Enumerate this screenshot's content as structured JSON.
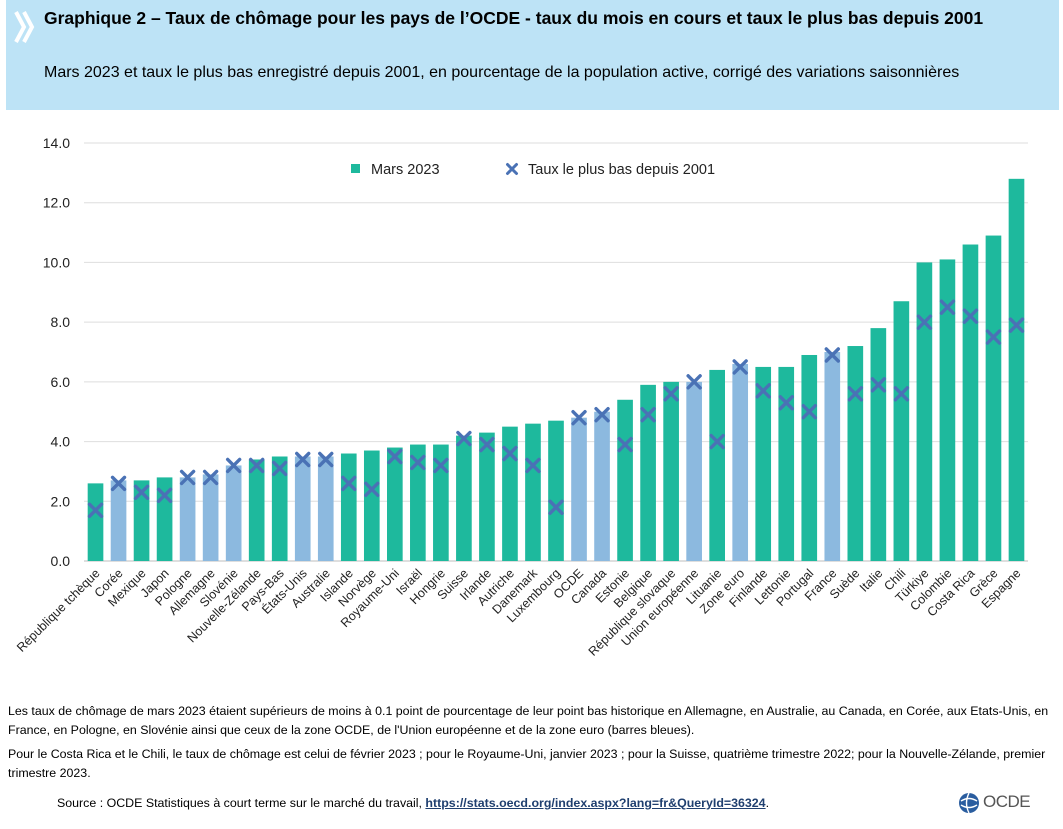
{
  "header": {
    "title": "Graphique 2 – Taux de chômage pour les pays de l’OCDE - taux du mois en cours et taux le plus bas depuis 2001",
    "subtitle": "Mars 2023 et taux le plus bas enregistré depuis 2001, en pourcentage de la population active, corrigé des variations saisonnières"
  },
  "chart_data": {
    "type": "bar",
    "title": "",
    "xlabel": "",
    "ylabel": "",
    "ylim": [
      0,
      14
    ],
    "yticks": [
      "0.0",
      "2.0",
      "4.0",
      "6.0",
      "8.0",
      "10.0",
      "12.0",
      "14.0"
    ],
    "grid": true,
    "legend_position": "top-center",
    "colors": {
      "bar": "#1eb99d",
      "bar_highlight": "#8cb9df",
      "marker": "#4a72b5"
    },
    "categories": [
      "République tchèque",
      "Corée",
      "Mexique",
      "Japon",
      "Pologne",
      "Allemagne",
      "Slovénie",
      "Nouvelle-Zélande",
      "Pays-Bas",
      "États-Unis",
      "Australie",
      "Islande",
      "Norvège",
      "Royaume-Uni",
      "Israël",
      "Hongrie",
      "Suisse",
      "Irlande",
      "Autriche",
      "Danemark",
      "Luxembourg",
      "OCDE",
      "Canada",
      "Estonie",
      "Belgique",
      "République slovaque",
      "Union européenne",
      "Lituanie",
      "Zone euro",
      "Finlande",
      "Lettonie",
      "Portugal",
      "France",
      "Suède",
      "Italie",
      "Chili",
      "Türkiye",
      "Colombie",
      "Costa Rica",
      "Grèce",
      "Espagne"
    ],
    "highlighted": [
      false,
      true,
      false,
      false,
      true,
      true,
      true,
      false,
      false,
      true,
      true,
      false,
      false,
      false,
      false,
      false,
      false,
      false,
      false,
      false,
      false,
      true,
      true,
      false,
      false,
      false,
      true,
      false,
      true,
      false,
      false,
      false,
      true,
      false,
      false,
      false,
      false,
      false,
      false,
      false,
      false
    ],
    "series": [
      {
        "name": "Mars 2023",
        "kind": "bar",
        "values": [
          2.6,
          2.7,
          2.7,
          2.8,
          2.8,
          2.9,
          3.2,
          3.4,
          3.5,
          3.5,
          3.5,
          3.6,
          3.7,
          3.8,
          3.9,
          3.9,
          4.2,
          4.3,
          4.5,
          4.6,
          4.7,
          4.8,
          5.0,
          5.4,
          5.9,
          6.0,
          6.0,
          6.4,
          6.6,
          6.5,
          6.5,
          6.9,
          7.0,
          7.2,
          7.8,
          8.7,
          10.0,
          10.1,
          10.6,
          10.9,
          12.8
        ]
      },
      {
        "name": "Taux le plus bas depuis 2001",
        "kind": "marker",
        "values": [
          1.7,
          2.6,
          2.3,
          2.2,
          2.8,
          2.8,
          3.2,
          3.2,
          3.1,
          3.4,
          3.4,
          2.6,
          2.4,
          3.5,
          3.3,
          3.2,
          4.1,
          3.9,
          3.6,
          3.2,
          1.8,
          4.8,
          4.9,
          3.9,
          4.9,
          5.6,
          6.0,
          4.0,
          6.5,
          5.7,
          5.3,
          5.0,
          6.9,
          5.6,
          5.9,
          5.6,
          8.0,
          8.5,
          8.2,
          7.5,
          7.9
        ]
      }
    ]
  },
  "notes": {
    "line1": "Les taux de chômage de mars 2023 étaient supérieurs de moins à 0.1 point de pourcentage de leur point bas historique en Allemagne, en Australie, au Canada, en Corée, aux Etats-Unis, en France, en Pologne, en Slovénie ainsi que ceux de la zone OCDE, de l'Union européenne et de la zone euro (barres bleues).",
    "line2": "Pour le Costa Rica et le Chili, le taux de chômage est celui de février 2023 ; pour le Royaume-Uni, janvier 2023 ; pour la Suisse, quatrième trimestre 2022; pour la Nouvelle-Zélande, premier trimestre 2023."
  },
  "source": {
    "prefix": "Source : OCDE Statistiques à court terme sur le marché du travail, ",
    "link": "https://stats.oecd.org/index.aspx?lang=fr&QueryId=36324",
    "suffix": "."
  },
  "logo": {
    "text": "OCDE"
  }
}
